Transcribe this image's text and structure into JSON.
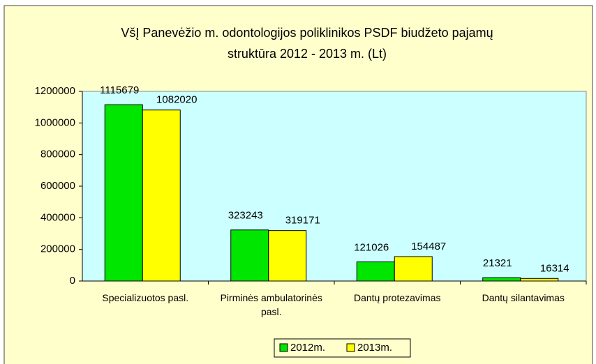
{
  "chart_data": {
    "type": "bar",
    "title": "VšĮ Panevėžio m. odontologijos poliklinikos PSDF biudžeto pajamų struktūra 2012 - 2013 m. (Lt)",
    "categories": [
      "Specializuotos pasl.",
      "Pirminės ambulatorinės pasl.",
      "Dantų protezavimas",
      "Dantų silantavimas"
    ],
    "series": [
      {
        "name": "2012m.",
        "color": "#00e600",
        "values": [
          1115679,
          323243,
          121026,
          21321
        ]
      },
      {
        "name": "2013m.",
        "color": "#ffff00",
        "values": [
          1082020,
          319171,
          154487,
          16314
        ]
      }
    ],
    "ylim": [
      0,
      1200000
    ],
    "yticks": [
      0,
      200000,
      400000,
      600000,
      800000,
      1000000,
      1200000
    ],
    "grid": false,
    "legend": "bottom"
  }
}
